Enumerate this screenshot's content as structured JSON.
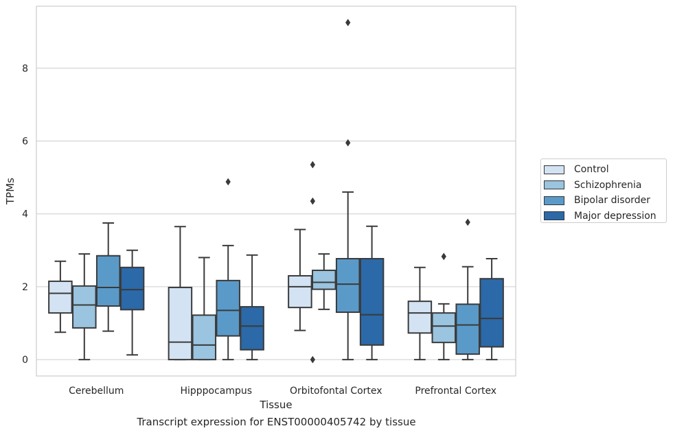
{
  "chart_data": {
    "type": "box",
    "title": "",
    "caption": "Transcript expression for ENST00000405742 by tissue",
    "xlabel": "Tissue",
    "ylabel": "TPMs",
    "ylim": [
      -0.45,
      9.7
    ],
    "yticks": [
      0,
      2,
      4,
      6,
      8
    ],
    "grid": true,
    "legend_position": "right",
    "categories": [
      "Cerebellum",
      "Hipppocampus",
      "Orbitofontal Cortex",
      "Prefrontal Cortex"
    ],
    "series": [
      {
        "name": "Control",
        "color": "#d3e3f3",
        "boxes": [
          {
            "whisker_low": 0.75,
            "q1": 1.28,
            "median": 1.82,
            "q3": 2.15,
            "whisker_high": 2.7,
            "outliers": []
          },
          {
            "whisker_low": 0.0,
            "q1": 0.0,
            "median": 0.48,
            "q3": 1.98,
            "whisker_high": 3.65,
            "outliers": []
          },
          {
            "whisker_low": 0.8,
            "q1": 1.43,
            "median": 2.0,
            "q3": 2.3,
            "whisker_high": 3.57,
            "outliers": []
          },
          {
            "whisker_low": 0.0,
            "q1": 0.73,
            "median": 1.28,
            "q3": 1.6,
            "whisker_high": 2.53,
            "outliers": []
          }
        ]
      },
      {
        "name": "Schizophrenia",
        "color": "#9ac4df",
        "boxes": [
          {
            "whisker_low": 0.0,
            "q1": 0.87,
            "median": 1.5,
            "q3": 2.02,
            "whisker_high": 2.9,
            "outliers": []
          },
          {
            "whisker_low": 0.0,
            "q1": 0.0,
            "median": 0.4,
            "q3": 1.22,
            "whisker_high": 2.8,
            "outliers": []
          },
          {
            "whisker_low": 1.38,
            "q1": 1.93,
            "median": 2.12,
            "q3": 2.45,
            "whisker_high": 2.9,
            "outliers": []
          },
          {
            "whisker_low": 0.0,
            "q1": 0.47,
            "median": 0.92,
            "q3": 1.28,
            "whisker_high": 1.53,
            "outliers": [
              2.83
            ]
          }
        ]
      },
      {
        "name": "Bipolar disorder",
        "color": "#5a9ac9",
        "boxes": [
          {
            "whisker_low": 0.78,
            "q1": 1.47,
            "median": 1.98,
            "q3": 2.85,
            "whisker_high": 3.75,
            "outliers": []
          },
          {
            "whisker_low": 0.0,
            "q1": 0.65,
            "median": 1.35,
            "q3": 2.17,
            "whisker_high": 3.13,
            "outliers": [
              4.88
            ]
          },
          {
            "whisker_low": 0.0,
            "q1": 1.3,
            "median": 2.07,
            "q3": 2.77,
            "whisker_high": 4.6,
            "outliers": [
              5.95,
              9.25
            ]
          },
          {
            "whisker_low": 0.0,
            "q1": 0.15,
            "median": 0.95,
            "q3": 1.52,
            "whisker_high": 2.55,
            "outliers": [
              3.77
            ]
          }
        ]
      },
      {
        "name": "Major depression",
        "color": "#2b69a8",
        "boxes": [
          {
            "whisker_low": 0.13,
            "q1": 1.37,
            "median": 1.92,
            "q3": 2.53,
            "whisker_high": 3.0,
            "outliers": []
          },
          {
            "whisker_low": 0.0,
            "q1": 0.27,
            "median": 0.92,
            "q3": 1.45,
            "whisker_high": 2.87,
            "outliers": []
          },
          {
            "whisker_low": 0.0,
            "q1": 0.4,
            "median": 1.23,
            "q3": 2.77,
            "whisker_high": 3.66,
            "outliers": []
          },
          {
            "whisker_low": 0.0,
            "q1": 0.35,
            "median": 1.13,
            "q3": 2.22,
            "whisker_high": 2.77,
            "outliers": []
          }
        ]
      }
    ],
    "extra_outliers": [
      {
        "category": "Orbitofontal Cortex",
        "group": "Control",
        "values": [
          0.0,
          4.35,
          5.35
        ]
      }
    ]
  }
}
